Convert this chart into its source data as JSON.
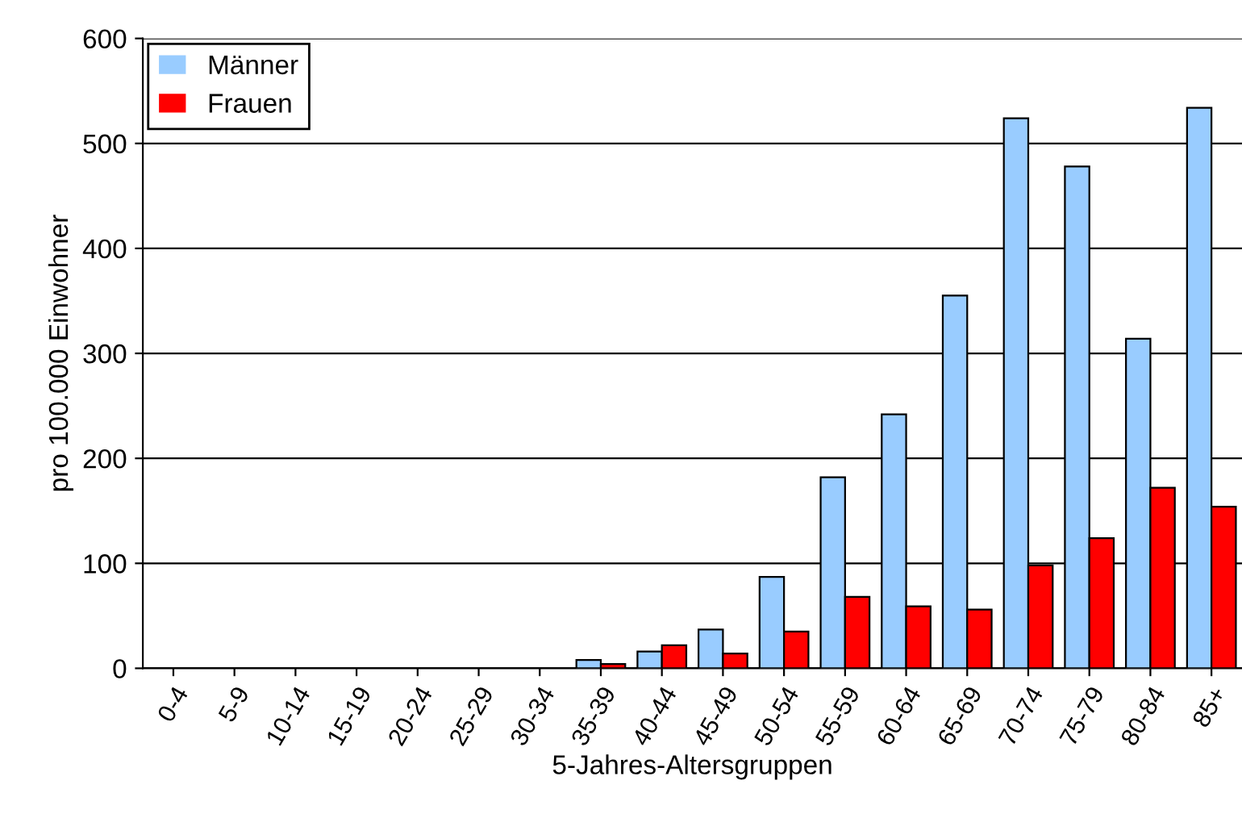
{
  "chart_data": {
    "type": "bar",
    "xlabel": "5-Jahres-Altersgruppen",
    "ylabel": "pro 100.000 Einwohner",
    "categories": [
      "0-4",
      "5-9",
      "10-14",
      "15-19",
      "20-24",
      "25-29",
      "30-34",
      "35-39",
      "40-44",
      "45-49",
      "50-54",
      "55-59",
      "60-64",
      "65-69",
      "70-74",
      "75-79",
      "80-84",
      "85+"
    ],
    "series": [
      {
        "name": "Männer",
        "color": "#99ccff",
        "values": [
          0,
          0,
          0,
          0,
          0,
          0,
          0,
          8,
          16,
          37,
          87,
          182,
          242,
          355,
          524,
          478,
          314,
          534
        ]
      },
      {
        "name": "Frauen",
        "color": "#ff0000",
        "values": [
          0,
          0,
          0,
          0,
          0,
          0,
          0,
          4,
          22,
          14,
          35,
          68,
          59,
          56,
          98,
          124,
          172,
          154
        ]
      }
    ],
    "ylim": [
      0,
      600
    ],
    "yticks": [
      0,
      100,
      200,
      300,
      400,
      500,
      600
    ],
    "grid": "y",
    "legend": "top left"
  }
}
